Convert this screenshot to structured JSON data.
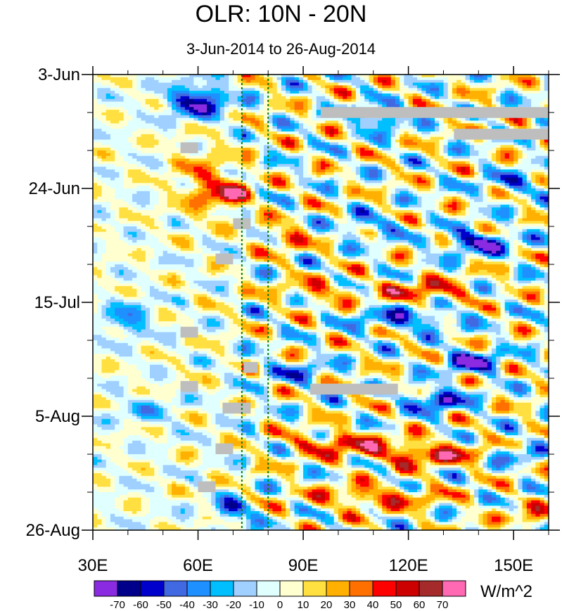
{
  "chart_data": {
    "type": "heatmap",
    "title": "OLR: 10N - 20N",
    "subtitle": "3-Jun-2014 to 26-Aug-2014",
    "x_ticks": [
      "30E",
      "60E",
      "90E",
      "120E",
      "150E"
    ],
    "x_tick_values": [
      30,
      60,
      90,
      120,
      150
    ],
    "xlim": [
      30,
      160
    ],
    "y_ticks": [
      "3-Jun",
      "24-Jun",
      "15-Jul",
      "5-Aug",
      "26-Aug"
    ],
    "y_tick_days": [
      0,
      21,
      42,
      63,
      84
    ],
    "ylim_days": [
      0,
      84
    ],
    "reference_lines_longitude": [
      72.5,
      80
    ],
    "colorbar": {
      "unit": "W/m^2",
      "labels": [
        "-70",
        "-60",
        "-50",
        "-40",
        "-30",
        "-20",
        "-10",
        "0",
        "10",
        "20",
        "30",
        "40",
        "50",
        "60",
        "70"
      ],
      "colors": [
        "#8a2be2",
        "#00008b",
        "#0000cd",
        "#4169e1",
        "#1e90ff",
        "#00bfff",
        "#a0d0ff",
        "#e0ffff",
        "#ffffd0",
        "#ffe040",
        "#ffb000",
        "#ff7000",
        "#ff0000",
        "#cc0000",
        "#a52a2a",
        "#ff69b4"
      ]
    },
    "missing_data_patches": [
      {
        "lon": [
          55,
          60
        ],
        "day": [
          12.5,
          14.5
        ]
      },
      {
        "lon": [
          95,
          160
        ],
        "day": [
          6,
          8
        ]
      },
      {
        "lon": [
          133,
          160
        ],
        "day": [
          10,
          12
        ]
      },
      {
        "lon": [
          70,
          75
        ],
        "day": [
          26.5,
          28.5
        ]
      },
      {
        "lon": [
          65,
          70
        ],
        "day": [
          33,
          35
        ]
      },
      {
        "lon": [
          55,
          60
        ],
        "day": [
          46.5,
          48.5
        ]
      },
      {
        "lon": [
          73,
          77
        ],
        "day": [
          53,
          55
        ]
      },
      {
        "lon": [
          55,
          60
        ],
        "day": [
          56.5,
          58.5
        ]
      },
      {
        "lon": [
          92,
          117
        ],
        "day": [
          57,
          59
        ]
      },
      {
        "lon": [
          67,
          75
        ],
        "day": [
          60.5,
          62.5
        ]
      },
      {
        "lon": [
          65,
          70
        ],
        "day": [
          68,
          70
        ]
      },
      {
        "lon": [
          60,
          65
        ],
        "day": [
          75,
          77
        ]
      }
    ],
    "features": [
      {
        "lon": 60,
        "day": 5,
        "value": -65,
        "rx": 8,
        "ry": 3
      },
      {
        "lon": 70,
        "day": 22,
        "value": 55,
        "rx": 6,
        "ry": 2
      },
      {
        "lon": 112,
        "day": 8,
        "value": -55,
        "rx": 6,
        "ry": 2
      },
      {
        "lon": 140,
        "day": 31,
        "value": -60,
        "rx": 10,
        "ry": 2
      },
      {
        "lon": 125,
        "day": 40,
        "value": 45,
        "rx": 12,
        "ry": 2
      },
      {
        "lon": 120,
        "day": 45,
        "value": -45,
        "rx": 14,
        "ry": 2
      },
      {
        "lon": 138,
        "day": 53,
        "value": -60,
        "rx": 8,
        "ry": 2
      },
      {
        "lon": 128,
        "day": 60,
        "value": -60,
        "rx": 8,
        "ry": 2
      },
      {
        "lon": 100,
        "day": 68,
        "value": 45,
        "rx": 14,
        "ry": 2
      },
      {
        "lon": 125,
        "day": 70,
        "value": 55,
        "rx": 16,
        "ry": 2
      },
      {
        "lon": 70,
        "day": 80,
        "value": -55,
        "rx": 5,
        "ry": 2
      },
      {
        "lon": 110,
        "day": 78,
        "value": 40,
        "rx": 18,
        "ry": 2
      },
      {
        "lon": 85,
        "day": 30,
        "value": 40,
        "rx": 6,
        "ry": 2
      },
      {
        "lon": 62,
        "day": 20,
        "value": 30,
        "rx": 8,
        "ry": 6
      },
      {
        "lon": 108,
        "day": 28,
        "value": -30,
        "rx": 10,
        "ry": 2
      },
      {
        "lon": 150,
        "day": 20,
        "value": -30,
        "rx": 10,
        "ry": 2
      },
      {
        "lon": 95,
        "day": 40,
        "value": 30,
        "rx": 10,
        "ry": 2
      },
      {
        "lon": 88,
        "day": 55,
        "value": -30,
        "rx": 10,
        "ry": 2
      },
      {
        "lon": 150,
        "day": 70,
        "value": -30,
        "rx": 8,
        "ry": 2
      },
      {
        "lon": 40,
        "day": 45,
        "value": -35,
        "rx": 6,
        "ry": 3
      },
      {
        "lon": 45,
        "day": 62,
        "value": -25,
        "rx": 8,
        "ry": 2
      },
      {
        "lon": 155,
        "day": 82,
        "value": 35,
        "rx": 6,
        "ry": 2
      }
    ]
  }
}
